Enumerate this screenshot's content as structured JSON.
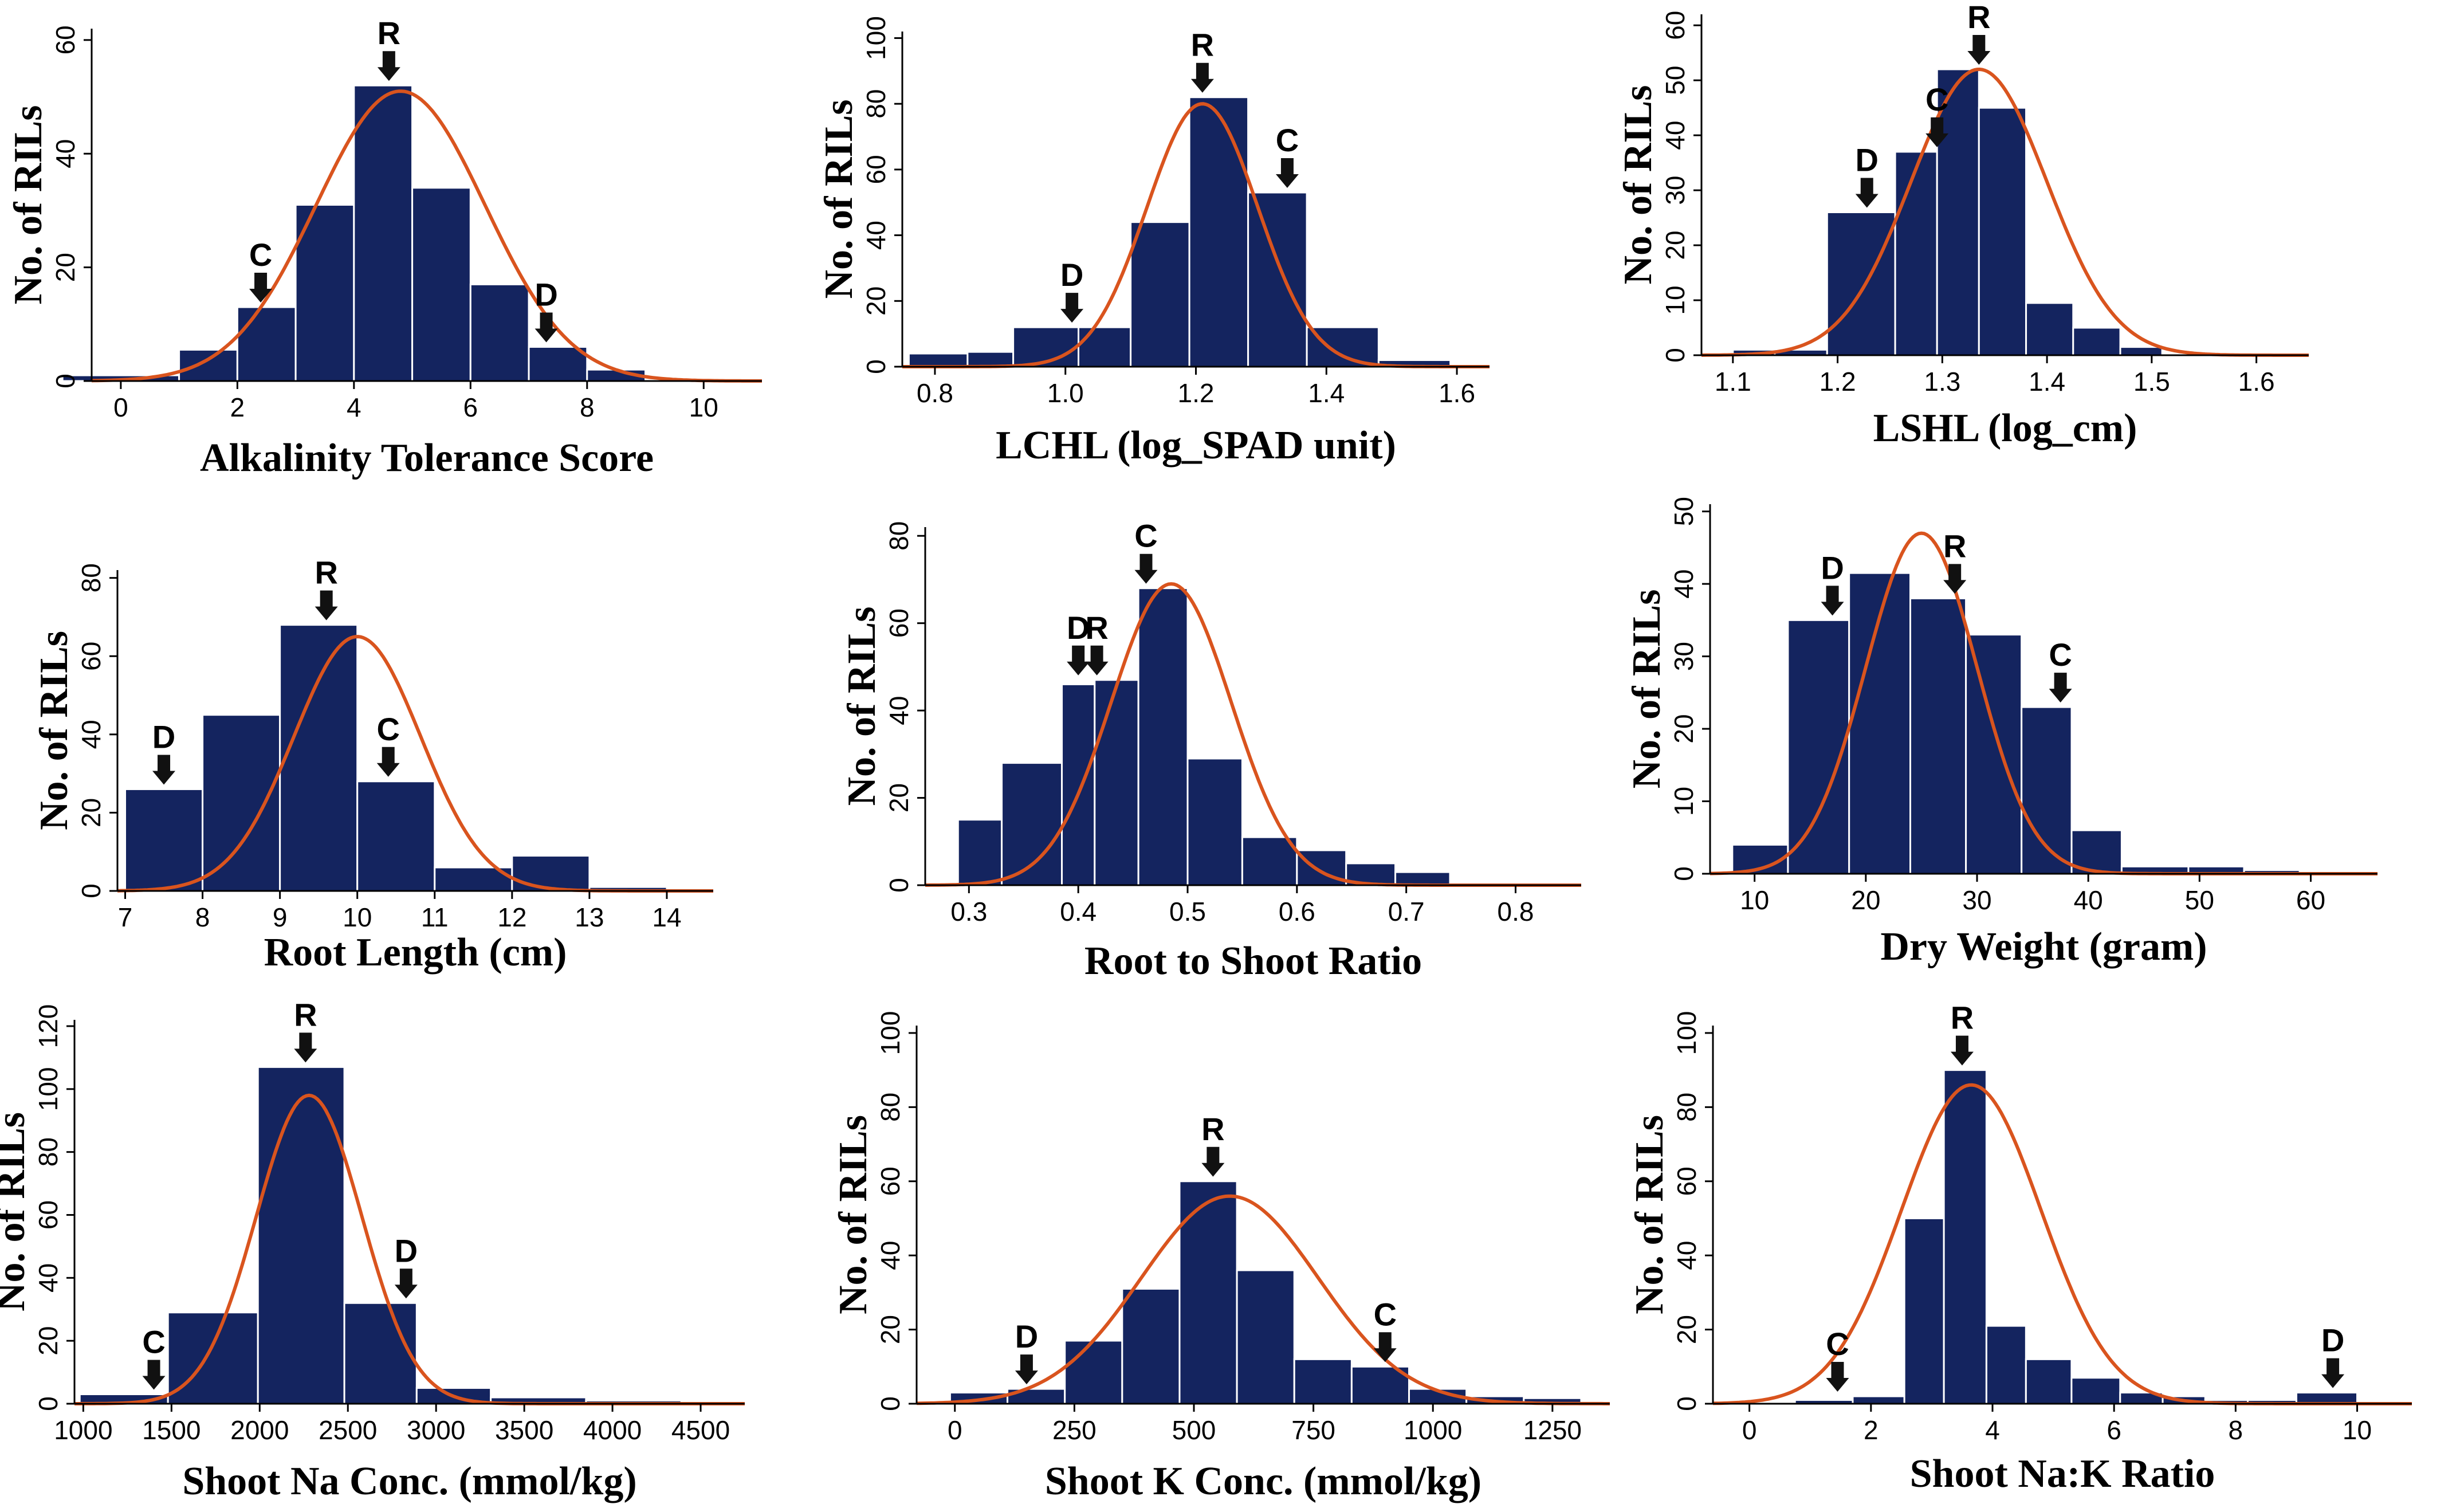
{
  "figure": {
    "background": "#ffffff",
    "bar_color": "#14245f",
    "curve_color": "#d9541e",
    "axis_color": "#000000"
  },
  "chart_data": [
    {
      "type": "bar",
      "title": "",
      "xlabel": "Alkalinity  Tolerance Score",
      "ylabel": "No. of RILs",
      "xlim": [
        -0.5,
        11
      ],
      "ylim": [
        0,
        62
      ],
      "xticks": [
        0,
        2,
        4,
        6,
        8,
        10
      ],
      "xtick_labels": [
        "0",
        "2",
        "4",
        "6",
        "8",
        "10"
      ],
      "yticks": [
        0,
        20,
        40,
        60
      ],
      "ytick_labels": [
        "0",
        "20",
        "40",
        "60"
      ],
      "bins": [
        [
          -1,
          1,
          1
        ],
        [
          1,
          2,
          5.5
        ],
        [
          2,
          3,
          13
        ],
        [
          3,
          4,
          31
        ],
        [
          4,
          5,
          52
        ],
        [
          5,
          6,
          34
        ],
        [
          6,
          7,
          17
        ],
        [
          7,
          8,
          6
        ],
        [
          8,
          9,
          2
        ]
      ],
      "normal_fit": {
        "mean": 4.8,
        "sd": 1.45,
        "peak": 51
      },
      "annotations": [
        {
          "label": "R",
          "x": 4.6,
          "y": 52
        },
        {
          "label": "C",
          "x": 2.4,
          "y": 13
        },
        {
          "label": "D",
          "x": 7.3,
          "y": 6
        }
      ]
    },
    {
      "type": "bar",
      "title": "",
      "xlabel": "LCHL (log_SPAD unit)",
      "ylabel": "No. of RILs",
      "xlim": [
        0.75,
        1.65
      ],
      "ylim": [
        0,
        102
      ],
      "xticks": [
        0.8,
        1.0,
        1.2,
        1.4,
        1.6
      ],
      "xtick_labels": [
        "0.8",
        "1.0",
        "1.2",
        "1.4",
        "1.6"
      ],
      "yticks": [
        0,
        20,
        40,
        60,
        80,
        100
      ],
      "ytick_labels": [
        "0",
        "20",
        "40",
        "60",
        "80",
        "100"
      ],
      "bins": [
        [
          0.76,
          0.85,
          4
        ],
        [
          0.85,
          0.92,
          4.5
        ],
        [
          0.92,
          1.02,
          12
        ],
        [
          1.02,
          1.1,
          12
        ],
        [
          1.1,
          1.19,
          44
        ],
        [
          1.19,
          1.28,
          82
        ],
        [
          1.28,
          1.37,
          53
        ],
        [
          1.37,
          1.48,
          12
        ],
        [
          1.48,
          1.59,
          2
        ]
      ],
      "normal_fit": {
        "mean": 1.21,
        "sd": 0.085,
        "peak": 80
      },
      "annotations": [
        {
          "label": "R",
          "x": 1.21,
          "y": 82
        },
        {
          "label": "C",
          "x": 1.34,
          "y": 53
        },
        {
          "label": "D",
          "x": 1.01,
          "y": 12
        }
      ]
    },
    {
      "type": "bar",
      "title": "",
      "xlabel": "LSHL (log_cm)",
      "ylabel": "No. of RILs",
      "xlim": [
        1.07,
        1.65
      ],
      "ylim": [
        0,
        62
      ],
      "xticks": [
        1.1,
        1.2,
        1.3,
        1.4,
        1.5,
        1.6
      ],
      "xtick_labels": [
        "1.1",
        "1.2",
        "1.3",
        "1.4",
        "1.5",
        "1.6"
      ],
      "yticks": [
        0,
        10,
        20,
        30,
        40,
        50,
        60
      ],
      "ytick_labels": [
        "0",
        "10",
        "20",
        "30",
        "40",
        "50",
        "60"
      ],
      "bins": [
        [
          1.1,
          1.14,
          1
        ],
        [
          1.14,
          1.19,
          1
        ],
        [
          1.19,
          1.255,
          26
        ],
        [
          1.255,
          1.295,
          37
        ],
        [
          1.295,
          1.335,
          52
        ],
        [
          1.335,
          1.38,
          45
        ],
        [
          1.38,
          1.425,
          9.5
        ],
        [
          1.425,
          1.47,
          5
        ],
        [
          1.47,
          1.51,
          1.5
        ]
      ],
      "normal_fit": {
        "mean": 1.335,
        "sd": 0.065,
        "peak": 52
      },
      "annotations": [
        {
          "label": "R",
          "x": 1.335,
          "y": 52
        },
        {
          "label": "C",
          "x": 1.295,
          "y": 37
        },
        {
          "label": "D",
          "x": 1.228,
          "y": 26
        }
      ]
    },
    {
      "type": "bar",
      "title": "",
      "xlabel": "Root Length (cm)",
      "ylabel": "No. of RILs",
      "xlim": [
        6.9,
        14.6
      ],
      "ylim": [
        0,
        82
      ],
      "xticks": [
        7,
        8,
        9,
        10,
        11,
        12,
        13,
        14
      ],
      "xtick_labels": [
        "7",
        "8",
        "9",
        "10",
        "11",
        "12",
        "13",
        "14"
      ],
      "yticks": [
        0,
        20,
        40,
        60,
        80
      ],
      "ytick_labels": [
        "0",
        "20",
        "40",
        "60",
        "80"
      ],
      "bins": [
        [
          7,
          8,
          26
        ],
        [
          8,
          9,
          45
        ],
        [
          9,
          10,
          68
        ],
        [
          10,
          11,
          28
        ],
        [
          11,
          12,
          6
        ],
        [
          12,
          13,
          9
        ],
        [
          13,
          14,
          1
        ]
      ],
      "normal_fit": {
        "mean": 10.0,
        "sd": 0.82,
        "peak": 65
      },
      "annotations": [
        {
          "label": "R",
          "x": 9.6,
          "y": 68
        },
        {
          "label": "C",
          "x": 10.4,
          "y": 28
        },
        {
          "label": "D",
          "x": 7.5,
          "y": 26
        }
      ]
    },
    {
      "type": "bar",
      "title": "",
      "xlabel": "Root to Shoot Ratio",
      "ylabel": "No. of RILs",
      "xlim": [
        0.26,
        0.86
      ],
      "ylim": [
        0,
        82
      ],
      "xticks": [
        0.3,
        0.4,
        0.5,
        0.6,
        0.7,
        0.8
      ],
      "xtick_labels": [
        "0.3",
        "0.4",
        "0.5",
        "0.6",
        "0.7",
        "0.8"
      ],
      "yticks": [
        0,
        20,
        40,
        60,
        80
      ],
      "ytick_labels": [
        "0",
        "20",
        "40",
        "60",
        "80"
      ],
      "bins": [
        [
          0.29,
          0.33,
          15
        ],
        [
          0.33,
          0.385,
          28
        ],
        [
          0.385,
          0.415,
          46
        ],
        [
          0.415,
          0.455,
          47
        ],
        [
          0.455,
          0.5,
          68
        ],
        [
          0.5,
          0.55,
          29
        ],
        [
          0.55,
          0.6,
          11
        ],
        [
          0.6,
          0.645,
          8
        ],
        [
          0.645,
          0.69,
          5
        ],
        [
          0.69,
          0.74,
          3
        ]
      ],
      "normal_fit": {
        "mean": 0.485,
        "sd": 0.055,
        "peak": 69
      },
      "annotations": [
        {
          "label": "C",
          "x": 0.462,
          "y": 68
        },
        {
          "label": "D",
          "x": 0.4,
          "y": 47
        },
        {
          "label": "R",
          "x": 0.417,
          "y": 47
        }
      ]
    },
    {
      "type": "bar",
      "title": "",
      "xlabel": "Dry Weight (gram)",
      "ylabel": "No. of RILs",
      "xlim": [
        6,
        66
      ],
      "ylim": [
        0,
        51
      ],
      "xticks": [
        10,
        20,
        30,
        40,
        50,
        60
      ],
      "xtick_labels": [
        "10",
        "20",
        "30",
        "40",
        "50",
        "60"
      ],
      "yticks": [
        0,
        10,
        20,
        30,
        40,
        50
      ],
      "ytick_labels": [
        "0",
        "10",
        "20",
        "30",
        "40",
        "50"
      ],
      "bins": [
        [
          8,
          13,
          4
        ],
        [
          13,
          18.5,
          35
        ],
        [
          18.5,
          24,
          41.5
        ],
        [
          24,
          29,
          38
        ],
        [
          29,
          34,
          33
        ],
        [
          34,
          38.5,
          23
        ],
        [
          38.5,
          43,
          6
        ],
        [
          43,
          49,
          1
        ],
        [
          49,
          54,
          1
        ],
        [
          54,
          59,
          0.5
        ]
      ],
      "normal_fit": {
        "mean": 25.0,
        "sd": 5.0,
        "peak": 47
      },
      "annotations": [
        {
          "label": "D",
          "x": 17,
          "y": 35
        },
        {
          "label": "R",
          "x": 28,
          "y": 38
        },
        {
          "label": "C",
          "x": 37.5,
          "y": 23
        }
      ]
    },
    {
      "type": "bar",
      "title": "",
      "xlabel": "Shoot Na Conc. (mmol/kg)",
      "ylabel": "No. of RILs",
      "xlim": [
        950,
        4750
      ],
      "ylim": [
        0,
        122
      ],
      "xticks": [
        1000,
        1500,
        2000,
        2500,
        3000,
        3500,
        4000,
        4500
      ],
      "xtick_labels": [
        "1000",
        "1500",
        "2000",
        "2500",
        "3000",
        "3500",
        "4000",
        "4500"
      ],
      "yticks": [
        0,
        20,
        40,
        60,
        80,
        100,
        120
      ],
      "ytick_labels": [
        "0",
        "20",
        "40",
        "60",
        "80",
        "100",
        "120"
      ],
      "bins": [
        [
          980,
          1480,
          3
        ],
        [
          1480,
          1990,
          29
        ],
        [
          1990,
          2480,
          107
        ],
        [
          2480,
          2890,
          32
        ],
        [
          2890,
          3310,
          5
        ],
        [
          3310,
          3850,
          2
        ],
        [
          3850,
          4390,
          1
        ]
      ],
      "normal_fit": {
        "mean": 2280,
        "sd": 300,
        "peak": 98
      },
      "annotations": [
        {
          "label": "R",
          "x": 2260,
          "y": 107
        },
        {
          "label": "D",
          "x": 2830,
          "y": 32
        },
        {
          "label": "C",
          "x": 1400,
          "y": 3
        }
      ]
    },
    {
      "type": "bar",
      "title": "",
      "xlabel": "Shoot K Conc. (mmol/kg)",
      "ylabel": "No. of RILs",
      "xlim": [
        -80,
        1370
      ],
      "ylim": [
        0,
        102
      ],
      "xticks": [
        0,
        250,
        500,
        750,
        1000,
        1250
      ],
      "xtick_labels": [
        "0",
        "250",
        "500",
        "750",
        "1000",
        "1250"
      ],
      "yticks": [
        0,
        20,
        40,
        60,
        80,
        100
      ],
      "ytick_labels": [
        "0",
        "20",
        "40",
        "60",
        "80",
        "100"
      ],
      "bins": [
        [
          -10,
          110,
          3
        ],
        [
          110,
          230,
          4
        ],
        [
          230,
          350,
          17
        ],
        [
          350,
          470,
          31
        ],
        [
          470,
          590,
          60
        ],
        [
          590,
          710,
          36
        ],
        [
          710,
          830,
          12
        ],
        [
          830,
          950,
          10
        ],
        [
          950,
          1070,
          4
        ],
        [
          1070,
          1190,
          2
        ],
        [
          1190,
          1310,
          1.5
        ]
      ],
      "normal_fit": {
        "mean": 575,
        "sd": 185,
        "peak": 56
      },
      "annotations": [
        {
          "label": "R",
          "x": 540,
          "y": 60
        },
        {
          "label": "D",
          "x": 150,
          "y": 4
        },
        {
          "label": "C",
          "x": 900,
          "y": 10
        }
      ]
    },
    {
      "type": "bar",
      "title": "",
      "xlabel": "Shoot Na:K Ratio",
      "ylabel": "No. of RILs",
      "xlim": [
        -0.6,
        10.9
      ],
      "ylim": [
        0,
        102
      ],
      "xticks": [
        0,
        2,
        4,
        6,
        8,
        10
      ],
      "xtick_labels": [
        "0",
        "2",
        "4",
        "6",
        "8",
        "10"
      ],
      "yticks": [
        0,
        20,
        40,
        60,
        80,
        100
      ],
      "ytick_labels": [
        "0",
        "20",
        "40",
        "60",
        "80",
        "100"
      ],
      "bins": [
        [
          0.75,
          1.7,
          1
        ],
        [
          1.7,
          2.55,
          2
        ],
        [
          2.55,
          3.2,
          50
        ],
        [
          3.2,
          3.9,
          90
        ],
        [
          3.9,
          4.55,
          21
        ],
        [
          4.55,
          5.3,
          12
        ],
        [
          5.3,
          6.1,
          7
        ],
        [
          6.1,
          6.8,
          3
        ],
        [
          6.8,
          7.5,
          2
        ],
        [
          7.5,
          8.2,
          1
        ],
        [
          8.2,
          9.0,
          1
        ],
        [
          9.0,
          10.0,
          3
        ]
      ],
      "normal_fit": {
        "mean": 3.65,
        "sd": 1.15,
        "peak": 86
      },
      "annotations": [
        {
          "label": "R",
          "x": 3.5,
          "y": 90
        },
        {
          "label": "C",
          "x": 1.45,
          "y": 2
        },
        {
          "label": "D",
          "x": 9.6,
          "y": 3
        }
      ]
    }
  ]
}
